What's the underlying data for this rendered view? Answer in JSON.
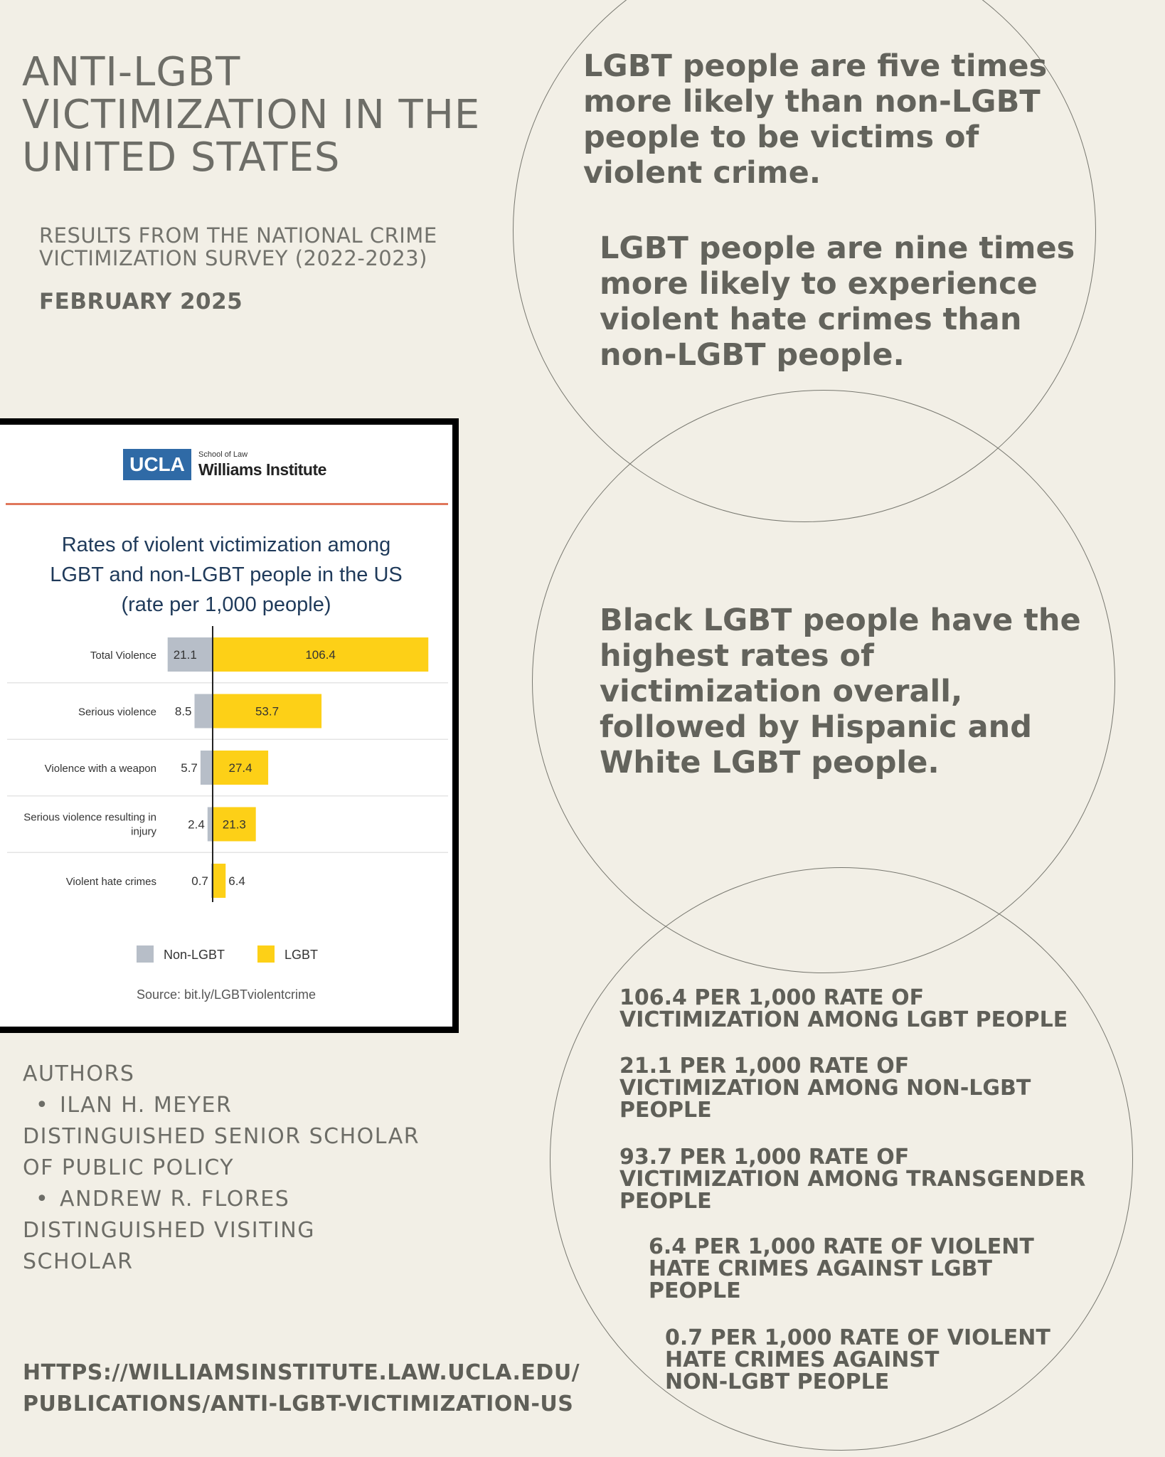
{
  "header": {
    "title": "ANTI-LGBT\nVICTIMIZATION IN THE\nUNITED STATES",
    "subtitle": "RESULTS FROM THE NATIONAL CRIME\nVICTIMIZATION SURVEY (2022-2023)",
    "date": "FEBRUARY 2025"
  },
  "statements": {
    "s1": "LGBT people are five times\nmore likely than non-LGBT\npeople to be victims of\nviolent crime.",
    "s2": "LGBT people are nine times\nmore likely to experience\nviolent hate crimes than\nnon-LGBT people.",
    "s3": "Black LGBT people have the\nhighest rates of\nvictimization overall,\nfollowed by Hispanic and\nWhite LGBT people."
  },
  "stats": [
    "106.4 PER 1,000 RATE OF\nVICTIMIZATION AMONG LGBT PEOPLE",
    "21.1 PER 1,000 RATE OF\nVICTIMIZATION AMONG NON-LGBT\nPEOPLE",
    "93.7 PER 1,000 RATE OF\nVICTIMIZATION AMONG TRANSGENDER\nPEOPLE",
    "6.4 PER 1,000 RATE OF VIOLENT\nHATE CRIMES AGAINST LGBT\nPEOPLE",
    "0.7 PER 1,000 RATE OF VIOLENT\nHATE CRIMES AGAINST\nNON-LGBT PEOPLE"
  ],
  "authors": {
    "heading": "AUTHORS",
    "a1_name": "ILAN H. MEYER",
    "a1_role_1": "DISTINGUISHED SENIOR SCHOLAR",
    "a1_role_2": "OF PUBLIC POLICY",
    "a2_name": "ANDREW R. FLORES",
    "a2_role_1": "DISTINGUISHED VISITING",
    "a2_role_2": "SCHOLAR"
  },
  "url": "HTTPS://WILLIAMSINSTITUTE.LAW.UCLA.EDU/\nPUBLICATIONS/ANTI-LGBT-VICTIMIZATION-US",
  "card": {
    "ucla": "UCLA",
    "school": "School of Law",
    "institute": "Williams Institute",
    "source": "Source: bit.ly/LGBTviolentcrime"
  },
  "colors": {
    "background": "#f2efe6",
    "text": "#63635c",
    "non_lgbt": "#b7bec8",
    "lgbt": "#fdd017",
    "ucla_blue": "#2f6aa6",
    "rule": "#e0775c",
    "chart_title": "#1f3a5a"
  },
  "chart_data": {
    "type": "bar",
    "orientation": "diverging-horizontal",
    "title": "Rates of violent victimization among\nLGBT and non-LGBT people in the US\n(rate per 1,000 people)",
    "categories": [
      "Total Violence",
      "Serious violence",
      "Violence with a weapon",
      "Serious violence resulting in injury",
      "Violent hate crimes"
    ],
    "series": [
      {
        "name": "Non-LGBT",
        "values": [
          21.1,
          8.5,
          5.7,
          2.4,
          0.7
        ]
      },
      {
        "name": "LGBT",
        "values": [
          106.4,
          53.7,
          27.4,
          21.3,
          6.4
        ]
      }
    ],
    "legend": "bottom-center",
    "grid": false
  }
}
